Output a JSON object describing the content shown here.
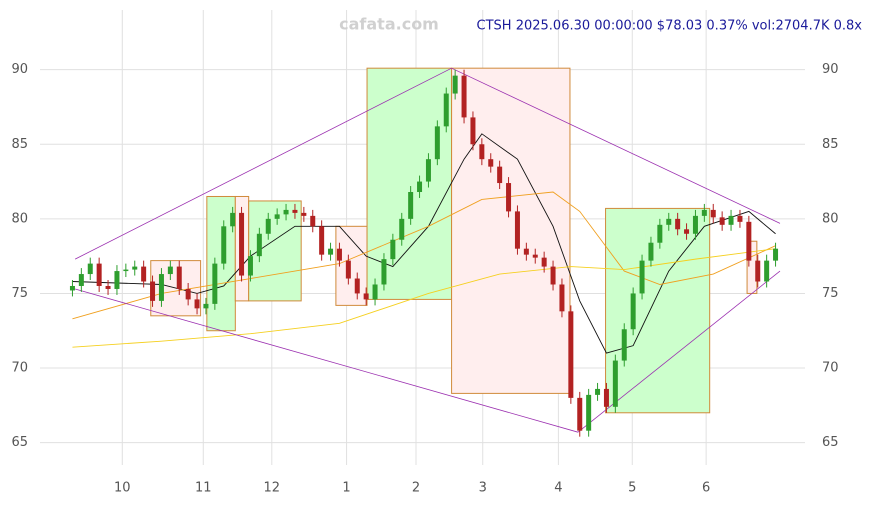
{
  "chart_data": {
    "type": "candlestick",
    "watermark": "cafata.com",
    "title": "CTSH 2025.06.30 00:00:00 $78.03 0.37% vol:2704.7K 0.8x",
    "up_color": "#2e9e2e",
    "down_color": "#b22222",
    "xlim": [
      -0.5,
      79.5
    ],
    "xticks": [
      {
        "value": 5.6,
        "label": "10"
      },
      {
        "value": 14.7,
        "label": "11"
      },
      {
        "value": 22.4,
        "label": "12"
      },
      {
        "value": 30.8,
        "label": "1"
      },
      {
        "value": 38.6,
        "label": "2"
      },
      {
        "value": 46.1,
        "label": "3"
      },
      {
        "value": 54.6,
        "label": "4"
      },
      {
        "value": 62.9,
        "label": "5"
      },
      {
        "value": 71.2,
        "label": "6"
      }
    ],
    "ylim": [
      63.5,
      94
    ],
    "yticks": [
      65,
      70,
      75,
      80,
      85,
      90
    ],
    "grid": true,
    "open": [
      75.2,
      75.5,
      76.3,
      77.0,
      75.5,
      75.3,
      76.5,
      76.6,
      76.8,
      75.8,
      74.5,
      76.3,
      76.8,
      75.3,
      74.6,
      74.0,
      74.3,
      77.0,
      79.5,
      80.4,
      76.2,
      77.5,
      79.0,
      80.0,
      80.3,
      80.6,
      80.4,
      80.2,
      79.5,
      77.6,
      78.0,
      77.2,
      76.0,
      75.0,
      74.6,
      75.6,
      77.3,
      78.6,
      80.0,
      81.8,
      82.5,
      84.0,
      86.2,
      88.4,
      89.6,
      86.8,
      85.0,
      84.0,
      83.5,
      82.4,
      80.5,
      78.0,
      77.6,
      77.4,
      76.8,
      75.6,
      73.8,
      68.0,
      65.8,
      68.2,
      68.6,
      67.4,
      70.5,
      72.6,
      75.0,
      77.2,
      78.4,
      79.6,
      80.0,
      79.3,
      79.0,
      80.2,
      80.6,
      80.1,
      79.6,
      80.2,
      79.8,
      77.2,
      75.8,
      77.2
    ],
    "high": [
      75.9,
      76.7,
      77.4,
      77.4,
      75.9,
      76.9,
      77.0,
      77.2,
      77.2,
      76.2,
      76.7,
      77.2,
      77.2,
      75.7,
      75.0,
      74.7,
      77.4,
      79.9,
      80.8,
      80.8,
      77.9,
      79.4,
      80.4,
      80.7,
      81.0,
      81.0,
      80.8,
      80.6,
      79.9,
      78.4,
      78.4,
      77.6,
      76.4,
      75.4,
      76.0,
      77.7,
      79.0,
      80.4,
      82.2,
      82.9,
      84.4,
      86.6,
      88.8,
      90.0,
      90.0,
      87.2,
      85.4,
      84.4,
      83.9,
      82.8,
      80.9,
      78.4,
      78.0,
      77.8,
      77.2,
      76.0,
      74.2,
      68.4,
      68.6,
      69.0,
      69.0,
      70.9,
      73.0,
      75.4,
      77.6,
      78.8,
      80.0,
      80.4,
      80.4,
      79.7,
      80.6,
      81.0,
      81.0,
      80.5,
      80.6,
      80.6,
      80.2,
      77.6,
      77.6,
      78.4
    ],
    "low": [
      74.8,
      75.1,
      75.9,
      75.1,
      74.9,
      74.9,
      76.1,
      76.2,
      75.4,
      74.1,
      74.1,
      75.9,
      74.9,
      74.2,
      73.6,
      73.6,
      73.9,
      76.6,
      79.1,
      75.8,
      75.8,
      77.1,
      78.6,
      79.6,
      79.9,
      80.0,
      79.8,
      79.1,
      77.2,
      77.2,
      76.8,
      75.6,
      74.6,
      74.2,
      74.2,
      75.2,
      76.9,
      78.2,
      79.6,
      81.4,
      82.1,
      83.6,
      85.8,
      88.0,
      86.4,
      84.6,
      83.6,
      83.1,
      82.0,
      80.1,
      77.6,
      77.2,
      77.0,
      76.4,
      75.2,
      73.4,
      67.6,
      65.4,
      65.4,
      67.8,
      67.0,
      67.0,
      70.1,
      72.2,
      74.6,
      76.8,
      78.0,
      79.2,
      78.9,
      78.6,
      78.6,
      79.8,
      79.7,
      79.2,
      79.2,
      79.4,
      76.8,
      75.4,
      75.4,
      76.8
    ],
    "close": [
      75.5,
      76.3,
      77.0,
      75.5,
      75.3,
      76.5,
      76.6,
      76.8,
      75.8,
      74.5,
      76.3,
      76.8,
      75.3,
      74.6,
      74.0,
      74.3,
      77.0,
      79.5,
      80.4,
      76.2,
      77.5,
      79.0,
      80.0,
      80.3,
      80.6,
      80.4,
      80.2,
      79.5,
      77.6,
      78.0,
      77.2,
      76.0,
      75.0,
      74.6,
      75.6,
      77.3,
      78.6,
      80.0,
      81.8,
      82.5,
      84.0,
      86.2,
      88.4,
      89.6,
      86.8,
      85.0,
      84.0,
      83.5,
      82.4,
      80.5,
      78.0,
      77.6,
      77.4,
      76.8,
      75.6,
      73.8,
      68.0,
      65.8,
      68.2,
      68.6,
      67.4,
      70.5,
      72.6,
      75.0,
      77.2,
      78.4,
      79.6,
      80.0,
      79.3,
      79.0,
      80.2,
      80.6,
      80.1,
      79.6,
      80.2,
      79.8,
      77.2,
      75.8,
      77.2,
      78.0
    ],
    "boxes": [
      {
        "x": [
          8.8,
          14.4
        ],
        "y": [
          73.5,
          77.2
        ],
        "color": "#ffeeee"
      },
      {
        "x": [
          15.1,
          18.3
        ],
        "y": [
          72.5,
          81.5
        ],
        "color": "#ccffcc"
      },
      {
        "x": [
          18.3,
          19.8
        ],
        "y": [
          74.5,
          81.5
        ],
        "color": "#ffeeee"
      },
      {
        "x": [
          19.8,
          25.7
        ],
        "y": [
          74.5,
          81.2
        ],
        "color": "#ccffcc"
      },
      {
        "x": [
          29.6,
          33.1
        ],
        "y": [
          74.2,
          79.5
        ],
        "color": "#ffeeee"
      },
      {
        "x": [
          33.1,
          42.6
        ],
        "y": [
          74.6,
          90.1
        ],
        "color": "#ccffcc"
      },
      {
        "x": [
          42.6,
          55.9
        ],
        "y": [
          68.3,
          90.1
        ],
        "color": "#ffeeee"
      },
      {
        "x": [
          59.9,
          71.6
        ],
        "y": [
          67.0,
          80.7
        ],
        "color": "#ccffcc"
      },
      {
        "x": [
          75.8,
          76.9
        ],
        "y": [
          75.0,
          78.5
        ],
        "color": "#ffeeee"
      }
    ],
    "box_border": "#d08a3a",
    "trendlines": [
      {
        "x": [
          0.3,
          42.6
        ],
        "y": [
          77.3,
          90.1
        ]
      },
      {
        "x": [
          42.6,
          79.5
        ],
        "y": [
          90.1,
          79.7
        ]
      },
      {
        "x": [
          0.3,
          56.8
        ],
        "y": [
          75.3,
          65.7
        ]
      },
      {
        "x": [
          56.8,
          79.5
        ],
        "y": [
          65.7,
          76.5
        ]
      }
    ],
    "trendline_color": "#9b30b0",
    "series": [
      {
        "color": "#111111",
        "x": [
          0,
          5,
          10,
          14,
          17,
          20,
          25,
          30,
          33,
          36,
          40,
          44,
          46,
          50,
          54,
          57,
          60,
          63,
          67,
          71,
          76,
          79
        ],
        "values": [
          75.8,
          75.7,
          75.6,
          75.0,
          75.5,
          77.5,
          79.5,
          79.5,
          77.5,
          76.8,
          79.5,
          84.0,
          85.7,
          84.0,
          79.5,
          74.5,
          71.0,
          71.5,
          76.5,
          79.5,
          80.5,
          79.0
        ]
      },
      {
        "color": "#f0a020",
        "x": [
          0,
          10,
          20,
          30,
          40,
          46,
          54,
          57,
          62,
          66,
          72,
          79
        ],
        "values": [
          73.3,
          75.0,
          76.0,
          77.0,
          79.5,
          81.3,
          81.8,
          80.5,
          76.5,
          75.6,
          76.3,
          78.2
        ]
      },
      {
        "color": "#f5d020",
        "x": [
          0,
          10,
          20,
          30,
          40,
          48,
          56,
          62,
          70,
          79
        ],
        "values": [
          71.4,
          71.8,
          72.3,
          73.0,
          75.0,
          76.3,
          76.8,
          76.6,
          77.3,
          78.0
        ]
      }
    ]
  }
}
